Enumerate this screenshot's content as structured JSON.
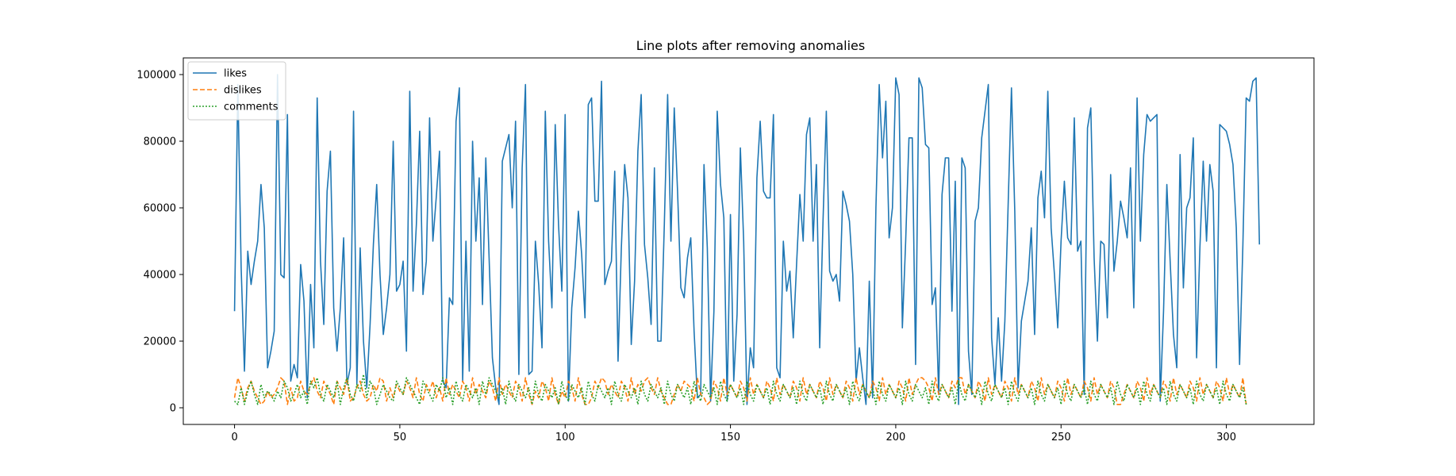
{
  "chart_data": {
    "type": "line",
    "title": "Line plots after removing anomalies",
    "xlabel": "",
    "ylabel": "",
    "xlim": [
      -15.5,
      326.5
    ],
    "ylim": [
      -5000,
      105000
    ],
    "x_ticks": [
      0,
      50,
      100,
      150,
      200,
      250,
      300
    ],
    "y_ticks": [
      0,
      20000,
      40000,
      60000,
      80000,
      100000
    ],
    "x_tick_labels": [
      "0",
      "50",
      "100",
      "150",
      "200",
      "250",
      "300"
    ],
    "y_tick_labels": [
      "0",
      "20000",
      "40000",
      "60000",
      "80000",
      "100000"
    ],
    "grid": false,
    "legend_position": "top-left",
    "x_start": 0,
    "series": [
      {
        "name": "likes",
        "color": "#1f77b4",
        "dash": "solid",
        "values": [
          29000,
          97000,
          42000,
          11000,
          47000,
          37000,
          44000,
          50000,
          67000,
          54000,
          12000,
          17000,
          23000,
          100000,
          40000,
          39000,
          88000,
          8000,
          13000,
          9000,
          43000,
          32000,
          3000,
          37000,
          18000,
          93000,
          44000,
          25000,
          65000,
          77000,
          30000,
          17000,
          30000,
          51000,
          7000,
          12000,
          89000,
          7000,
          48000,
          20000,
          6000,
          25000,
          49000,
          67000,
          40000,
          22000,
          30000,
          40000,
          80000,
          35000,
          37000,
          44000,
          17000,
          95000,
          35000,
          55000,
          83000,
          34000,
          44000,
          87000,
          50000,
          63000,
          77000,
          8000,
          6000,
          33000,
          31000,
          86000,
          96000,
          8000,
          50000,
          11000,
          80000,
          50000,
          69000,
          31000,
          75000,
          45000,
          15000,
          6000,
          1000,
          74000,
          78000,
          82000,
          60000,
          86000,
          10000,
          72000,
          97000,
          10000,
          11000,
          50000,
          37000,
          18000,
          89000,
          50000,
          30000,
          85000,
          55000,
          35000,
          88000,
          2000,
          30000,
          42000,
          59000,
          46000,
          27000,
          91000,
          93000,
          62000,
          62000,
          98000,
          37000,
          41000,
          44000,
          71000,
          14000,
          48000,
          73000,
          63000,
          19000,
          38000,
          77000,
          94000,
          49000,
          39000,
          25000,
          72000,
          20000,
          20000,
          55000,
          94000,
          50000,
          90000,
          65000,
          36000,
          33000,
          45000,
          51000,
          23000,
          3000,
          4000,
          73000,
          48000,
          2000,
          29000,
          89000,
          67000,
          57000,
          2000,
          58000,
          8000,
          28000,
          78000,
          50000,
          1000,
          18000,
          12000,
          69000,
          86000,
          65000,
          63000,
          63000,
          88000,
          12000,
          9000,
          50000,
          35000,
          41000,
          21000,
          43000,
          64000,
          50000,
          82000,
          87000,
          50000,
          73000,
          18000,
          56000,
          89000,
          41000,
          38000,
          40000,
          32000,
          65000,
          61000,
          56000,
          40000,
          8000,
          18000,
          9000,
          1000,
          38000,
          3000,
          60000,
          97000,
          75000,
          92000,
          51000,
          60000,
          99000,
          94000,
          24000,
          50000,
          81000,
          81000,
          13000,
          99000,
          96000,
          79000,
          78000,
          31000,
          36000,
          4000,
          64000,
          75000,
          75000,
          29000,
          68000,
          1000,
          75000,
          72000,
          17000,
          4000,
          56000,
          60000,
          81000,
          89000,
          97000,
          21000,
          7000,
          27000,
          8000,
          26000,
          61000,
          96000,
          59000,
          6000,
          26000,
          32000,
          38000,
          54000,
          22000,
          63000,
          71000,
          57000,
          95000,
          54000,
          40000,
          24000,
          50000,
          68000,
          51000,
          49000,
          87000,
          47000,
          50000,
          4000,
          84000,
          90000,
          45000,
          20000,
          50000,
          49000,
          27000,
          70000,
          41000,
          50000,
          62000,
          57000,
          51000,
          72000,
          30000,
          93000,
          50000,
          76000,
          88000,
          86000,
          87000,
          88000,
          2000,
          29000,
          67000,
          44000,
          22000,
          12000,
          76000,
          36000,
          60000,
          63000,
          81000,
          15000,
          48000,
          74000,
          50000,
          73000,
          65000,
          12000,
          85000,
          84000,
          83000,
          79000,
          73000,
          54000,
          13000,
          49000,
          93000,
          92000,
          98000,
          99000,
          49000
        ]
      },
      {
        "name": "dislikes",
        "color": "#ff7f0e",
        "dash": "dashed",
        "values": [
          3000,
          9000,
          6000,
          2000,
          6000,
          8000,
          5000,
          3000,
          1000,
          2000,
          5000,
          3000,
          4000,
          6000,
          9000,
          8000,
          1000,
          6000,
          2000,
          3000,
          8000,
          5000,
          4000,
          7000,
          9000,
          5000,
          3000,
          8000,
          6000,
          4000,
          1000,
          8000,
          6000,
          4000,
          9000,
          2000,
          3000,
          6000,
          8000,
          4000,
          2000,
          3000,
          7000,
          5000,
          9000,
          8000,
          2000,
          6000,
          3000,
          7000,
          5000,
          4000,
          8000,
          6000,
          3000,
          9000,
          4000,
          2000,
          7000,
          5000,
          8000,
          3000,
          6000,
          2000,
          9000,
          4000,
          7000,
          5000,
          3000,
          8000,
          6000,
          2000,
          9000,
          4000,
          7000,
          5000,
          3000,
          8000,
          6000,
          2000,
          9000,
          4000,
          7000,
          5000,
          3000,
          8000,
          6000,
          2000,
          9000,
          4000,
          1000,
          5000,
          3000,
          8000,
          6000,
          2000,
          9000,
          4000,
          1000,
          5000,
          3000,
          8000,
          6000,
          2000,
          9000,
          4000,
          1000,
          1000,
          3000,
          8000,
          6000,
          9000,
          8000,
          4000,
          7000,
          5000,
          3000,
          8000,
          6000,
          2000,
          9000,
          4000,
          7000,
          5000,
          8000,
          9000,
          6000,
          4000,
          9000,
          5000,
          3000,
          1000,
          1000,
          4000,
          7000,
          5000,
          8000,
          7000,
          6000,
          2000,
          9000,
          4000,
          3000,
          1000,
          2000,
          8000,
          6000,
          2000,
          9000,
          4000,
          7000,
          5000,
          3000,
          8000,
          6000,
          2000,
          9000,
          4000,
          7000,
          5000,
          3000,
          8000,
          6000,
          2000,
          9000,
          4000,
          7000,
          5000,
          3000,
          8000,
          6000,
          2000,
          9000,
          4000,
          7000,
          5000,
          3000,
          8000,
          6000,
          2000,
          9000,
          4000,
          7000,
          5000,
          3000,
          8000,
          6000,
          2000,
          9000,
          4000,
          7000,
          5000,
          3000,
          8000,
          6000,
          2000,
          9000,
          4000,
          7000,
          5000,
          3000,
          8000,
          6000,
          2000,
          9000,
          4000,
          7000,
          9000,
          9000,
          8000,
          6000,
          2000,
          9000,
          4000,
          7000,
          5000,
          3000,
          8000,
          6000,
          9000,
          9000,
          4000,
          7000,
          5000,
          3000,
          8000,
          6000,
          2000,
          9000,
          4000,
          7000,
          5000,
          3000,
          8000,
          6000,
          2000,
          9000,
          4000,
          7000,
          5000,
          3000,
          8000,
          6000,
          2000,
          9000,
          4000,
          7000,
          5000,
          3000,
          8000,
          6000,
          2000,
          9000,
          4000,
          7000,
          5000,
          3000,
          8000,
          6000,
          2000,
          9000,
          4000,
          7000,
          5000,
          3000,
          8000,
          6000,
          1000,
          1000,
          4000,
          7000,
          5000,
          3000,
          8000,
          6000,
          2000,
          9000,
          4000,
          7000,
          5000,
          3000,
          8000,
          6000,
          2000,
          9000,
          4000,
          7000,
          5000,
          3000,
          8000,
          6000,
          2000,
          9000,
          4000,
          7000,
          5000,
          3000,
          8000,
          6000,
          2000,
          9000,
          4000,
          7000,
          5000,
          3000,
          9000,
          1000
        ]
      },
      {
        "name": "comments",
        "color": "#2ca02c",
        "dash": "dotted",
        "values": [
          2000,
          1000,
          6000,
          1000,
          5000,
          8000,
          4000,
          1000,
          7000,
          3000,
          5000,
          4000,
          2000,
          5000,
          3000,
          8000,
          6000,
          2000,
          4000,
          7000,
          3000,
          5000,
          1000,
          8000,
          6000,
          9000,
          4000,
          2000,
          7000,
          5000,
          3000,
          8000,
          1000,
          6000,
          9000,
          4000,
          2000,
          7000,
          5000,
          10000,
          3000,
          8000,
          6000,
          1000,
          4000,
          7000,
          5000,
          3000,
          2000,
          8000,
          6000,
          4000,
          9000,
          7000,
          5000,
          3000,
          1000,
          8000,
          6000,
          4000,
          2000,
          7000,
          5000,
          9000,
          3000,
          6000,
          1000,
          8000,
          4000,
          2000,
          7000,
          5000,
          3000,
          6000,
          1000,
          8000,
          4000,
          9000,
          7000,
          5000,
          3000,
          6000,
          1000,
          8000,
          4000,
          2000,
          7000,
          5000,
          3000,
          6000,
          1000,
          8000,
          4000,
          2000,
          7000,
          5000,
          3000,
          6000,
          1000,
          8000,
          4000,
          2000,
          7000,
          5000,
          3000,
          6000,
          1000,
          8000,
          4000,
          2000,
          7000,
          5000,
          3000,
          6000,
          1000,
          8000,
          4000,
          2000,
          7000,
          5000,
          3000,
          6000,
          1000,
          8000,
          4000,
          2000,
          7000,
          5000,
          3000,
          6000,
          1000,
          8000,
          4000,
          2000,
          7000,
          5000,
          3000,
          6000,
          1000,
          8000,
          4000,
          2000,
          7000,
          5000,
          3000,
          6000,
          1000,
          8000,
          4000,
          2000,
          7000,
          5000,
          3000,
          6000,
          1000,
          8000,
          4000,
          2000,
          7000,
          5000,
          3000,
          6000,
          1000,
          8000,
          4000,
          2000,
          7000,
          5000,
          3000,
          6000,
          1000,
          8000,
          4000,
          2000,
          7000,
          5000,
          3000,
          6000,
          1000,
          8000,
          4000,
          2000,
          7000,
          5000,
          3000,
          6000,
          1000,
          8000,
          4000,
          2000,
          7000,
          5000,
          3000,
          6000,
          1000,
          8000,
          4000,
          2000,
          7000,
          5000,
          3000,
          6000,
          1000,
          8000,
          4000,
          2000,
          7000,
          5000,
          3000,
          6000,
          1000,
          8000,
          4000,
          2000,
          7000,
          5000,
          3000,
          6000,
          1000,
          8000,
          4000,
          2000,
          7000,
          5000,
          3000,
          6000,
          1000,
          8000,
          4000,
          2000,
          7000,
          5000,
          3000,
          6000,
          1000,
          8000,
          4000,
          2000,
          7000,
          5000,
          3000,
          6000,
          1000,
          8000,
          4000,
          2000,
          7000,
          5000,
          3000,
          6000,
          1000,
          8000,
          4000,
          2000,
          7000,
          5000,
          3000,
          6000,
          1000,
          8000,
          4000,
          2000,
          7000,
          5000,
          3000,
          6000,
          1000,
          8000,
          4000,
          2000,
          7000,
          5000,
          3000,
          6000,
          1000,
          8000,
          4000,
          2000,
          7000,
          5000,
          3000,
          6000,
          1000,
          8000,
          4000,
          2000,
          7000,
          5000,
          3000,
          6000,
          1000,
          8000,
          4000,
          2000,
          7000,
          5000,
          3000,
          6000,
          1000,
          8000,
          4000,
          2000,
          7000,
          5000,
          3000,
          6000,
          1000
        ]
      }
    ]
  }
}
